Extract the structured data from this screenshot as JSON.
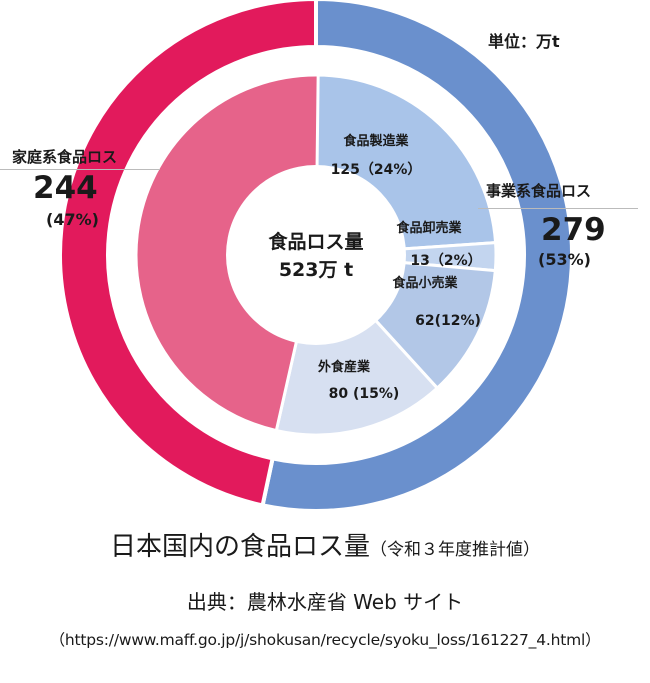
{
  "unit_label": "単位：万t",
  "household": {
    "title": "家庭系食品ロス",
    "value": "244",
    "pct": "(47%)"
  },
  "business": {
    "title": "事業系食品ロス",
    "value": "279",
    "pct": "(53%)"
  },
  "center": {
    "line1": "食品ロス量",
    "line2": "523万 t"
  },
  "caption": {
    "title": "日本国内の食品ロス量",
    "note": "（令和３年度推計値）",
    "source": "出典：農林水産省 Web サイト",
    "url": "（https://www.maff.go.jp/j/shokusan/recycle/syoku_loss/161227_4.html）"
  },
  "chart_data": {
    "type": "pie",
    "subtype": "two-level donut",
    "unit": "万t",
    "total": 523,
    "outer": [
      {
        "name": "事業系食品ロス",
        "value": 279,
        "pct": 53,
        "color": "#6a90cd"
      },
      {
        "name": "家庭系食品ロス",
        "value": 244,
        "pct": 47,
        "color": "#e21a5c"
      }
    ],
    "inner": [
      {
        "name": "食品製造業",
        "value": 125,
        "label": "125（24%）",
        "color": "#a9c4e9"
      },
      {
        "name": "食品卸売業",
        "value": 13,
        "label": "13（2%）",
        "color": "#c3d5ef"
      },
      {
        "name": "食品小売業",
        "value": 62,
        "label": "62(12%)",
        "color": "#b2c7e7"
      },
      {
        "name": "外食産業",
        "value": 80,
        "label": "80 (15%)",
        "color": "#d7e0f1"
      },
      {
        "name": "家庭系",
        "value": 244,
        "label": "",
        "color": "#e6638a"
      }
    ]
  }
}
